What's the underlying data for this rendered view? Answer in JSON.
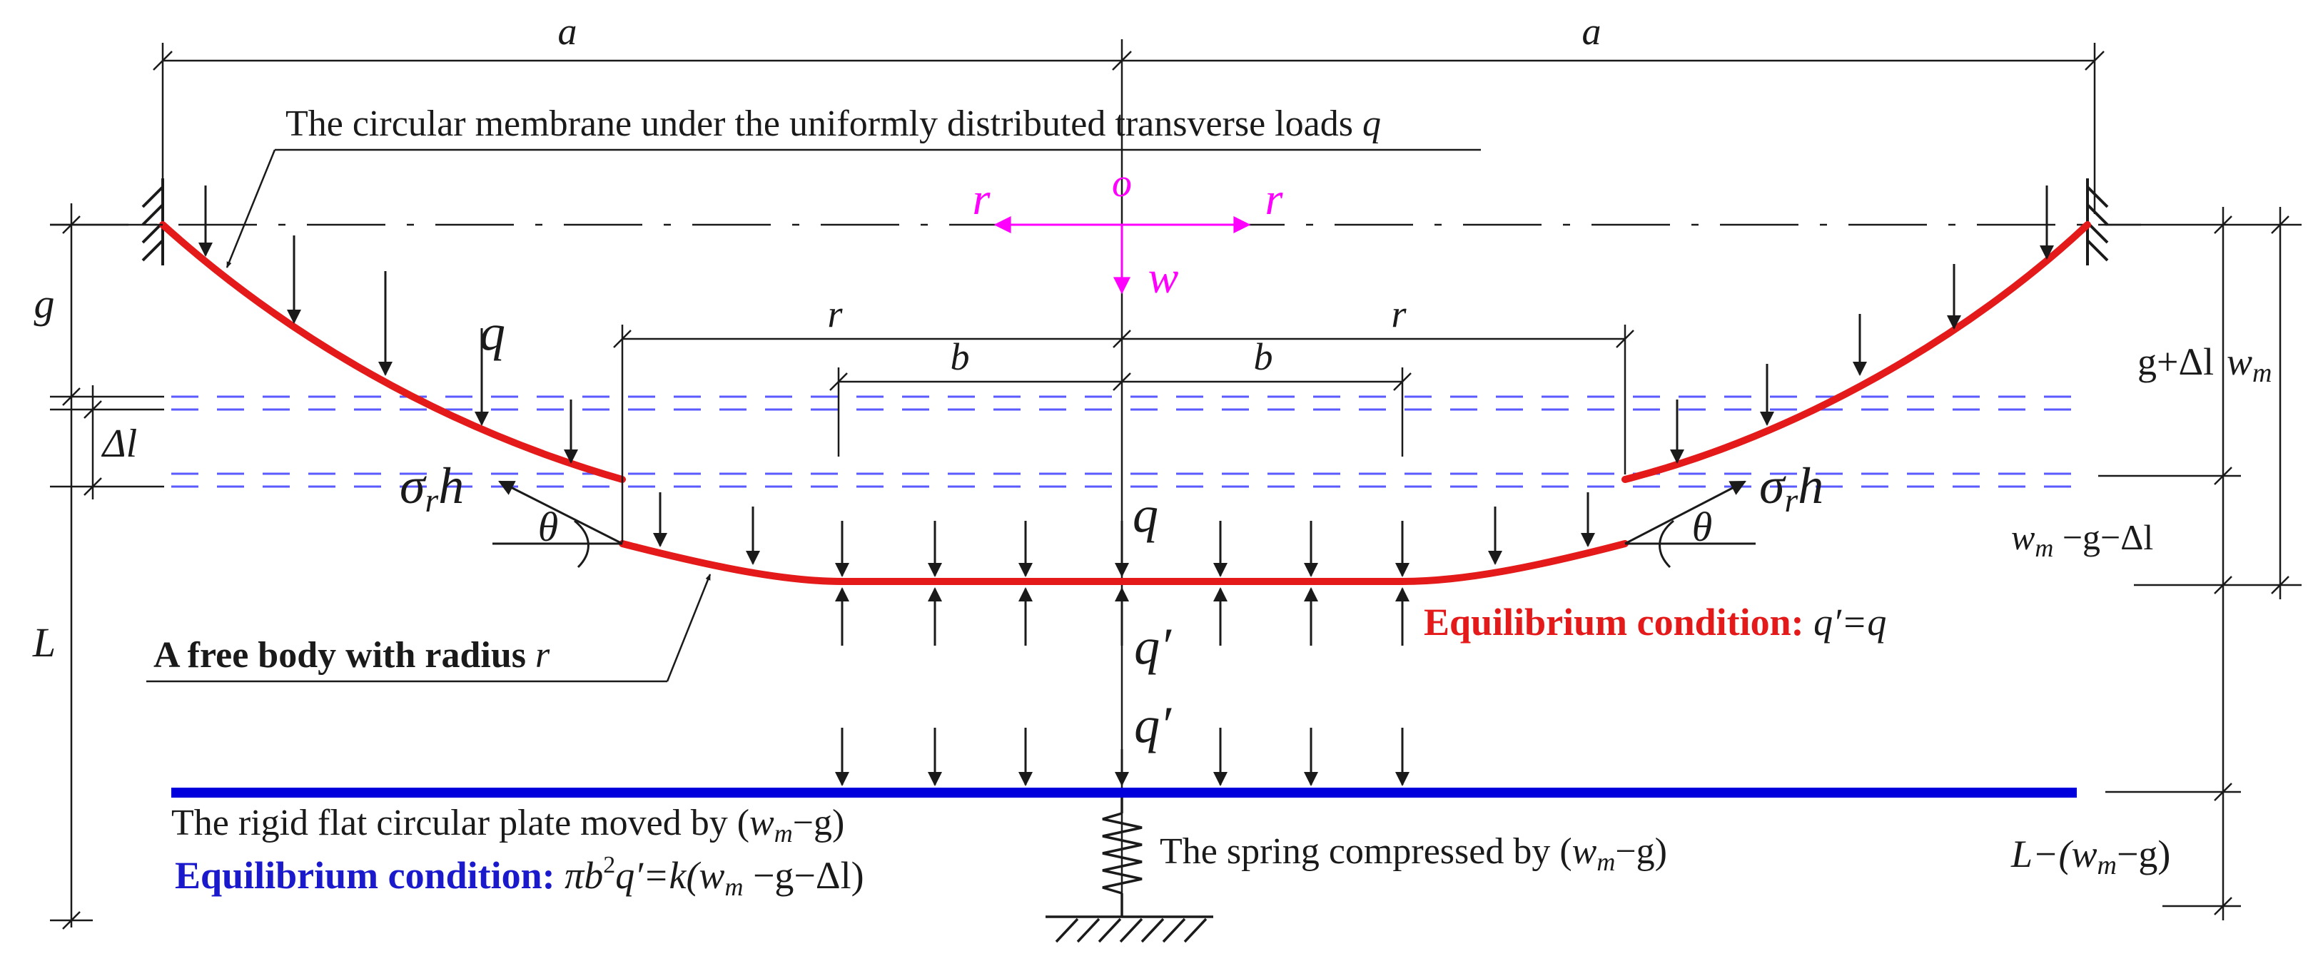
{
  "dimensions": {
    "a_left": "a",
    "a_right": "a",
    "r_left": "r",
    "r_right": "r",
    "b_left": "b",
    "b_right": "b",
    "g": "g",
    "delta_l": "Δl",
    "L": "L",
    "g_plus_delta_l": "g+Δl",
    "wm": "w",
    "wm_sub": "m",
    "wm_minus_g_minus_dl_main": "w",
    "wm_minus_g_minus_dl_sub": "m",
    "wm_minus_g_minus_dl_rest": " −g−Δl",
    "L_minus_prefix": "L−(",
    "L_minus_w": "w",
    "L_minus_sub": "m",
    "L_minus_suffix": "−g)"
  },
  "axes": {
    "origin": "o",
    "r_left": "r",
    "r_right": "r",
    "w": "w"
  },
  "loads": {
    "q_membrane": "q",
    "q_center": "q",
    "q_prime_upper": "q′",
    "q_prime_lower": "q′"
  },
  "forces": {
    "sigma_left_main": "σ",
    "sigma_left_sub": "r",
    "sigma_left_h": "h",
    "sigma_right_main": "σ",
    "sigma_right_sub": "r",
    "sigma_right_h": "h",
    "theta_left": "θ",
    "theta_right": "θ"
  },
  "labels": {
    "membrane_text": "The circular membrane under the uniformly distributed transverse loads ",
    "membrane_q": "q",
    "free_body_text": "A free body with radius ",
    "free_body_r": "r",
    "plate_text": "The  rigid flat circular plate moved by (",
    "plate_w": "w",
    "plate_sub": "m",
    "plate_suffix": "−g)",
    "spring_text": "The spring compressed by (",
    "spring_w": "w",
    "spring_sub": "m",
    "spring_suffix": "−g)",
    "eq_red_label": "Equilibrium condition: ",
    "eq_red_formula": "q′=q",
    "eq_blue_label": "Equilibrium condition: ",
    "eq_blue_pi": "πb",
    "eq_blue_sup": "2",
    "eq_blue_mid": "q′=k(w",
    "eq_blue_sub": "m",
    "eq_blue_end": " −g−Δl)"
  },
  "colors": {
    "membrane": "#e41a1a",
    "plate": "#0000dd",
    "axes": "#ff00ff",
    "dashed_levels": "#5a5aff",
    "ink": "#1a1a1a"
  }
}
